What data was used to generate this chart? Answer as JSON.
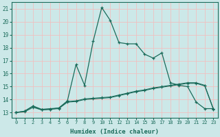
{
  "xlabel": "Humidex (Indice chaleur)",
  "background_color": "#cce8e8",
  "grid_color": "#f0c0c0",
  "line_color": "#1a6b5a",
  "xlim": [
    -0.5,
    23.5
  ],
  "ylim": [
    12.6,
    21.5
  ],
  "xticks": [
    0,
    1,
    2,
    3,
    4,
    5,
    6,
    7,
    8,
    9,
    10,
    11,
    12,
    13,
    14,
    15,
    16,
    17,
    18,
    19,
    20,
    21,
    22,
    23
  ],
  "yticks": [
    13,
    14,
    15,
    16,
    17,
    18,
    19,
    20,
    21
  ],
  "line1_x": [
    0,
    1,
    2,
    3,
    4,
    5,
    6,
    7,
    8,
    9,
    10,
    11,
    12,
    13,
    14,
    15,
    16,
    17,
    18,
    19,
    20,
    21,
    22,
    23
  ],
  "line1_y": [
    13.0,
    13.1,
    13.5,
    13.2,
    13.25,
    13.35,
    13.9,
    16.7,
    15.1,
    18.5,
    21.1,
    20.1,
    18.4,
    18.3,
    18.3,
    17.5,
    17.2,
    17.6,
    15.3,
    15.1,
    15.0,
    13.8,
    13.3,
    13.3
  ],
  "line2_x": [
    0,
    1,
    2,
    3,
    4,
    5,
    6,
    7,
    8,
    9,
    10,
    11,
    12,
    13,
    14,
    15,
    16,
    17,
    18,
    19,
    20,
    21,
    22,
    23
  ],
  "line2_y": [
    13.0,
    13.1,
    13.5,
    13.25,
    13.3,
    13.35,
    13.85,
    13.9,
    14.05,
    14.1,
    14.15,
    14.2,
    14.35,
    14.5,
    14.65,
    14.75,
    14.9,
    15.0,
    15.1,
    15.2,
    15.3,
    15.3,
    15.1,
    13.3
  ],
  "line3_x": [
    0,
    1,
    2,
    3,
    4,
    5,
    6,
    7,
    8,
    9,
    10,
    11,
    12,
    13,
    14,
    15,
    16,
    17,
    18,
    19,
    20,
    21,
    22,
    23
  ],
  "line3_y": [
    13.0,
    13.05,
    13.4,
    13.2,
    13.25,
    13.3,
    13.8,
    13.85,
    14.0,
    14.05,
    14.1,
    14.15,
    14.3,
    14.45,
    14.6,
    14.7,
    14.85,
    14.95,
    15.05,
    15.15,
    15.25,
    15.25,
    15.05,
    13.25
  ]
}
